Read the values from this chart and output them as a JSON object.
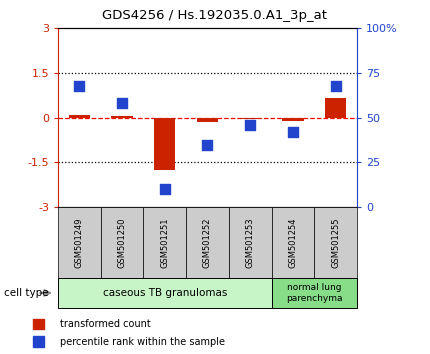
{
  "title": "GDS4256 / Hs.192035.0.A1_3p_at",
  "samples": [
    "GSM501249",
    "GSM501250",
    "GSM501251",
    "GSM501252",
    "GSM501253",
    "GSM501254",
    "GSM501255"
  ],
  "red_values": [
    0.1,
    0.05,
    -1.75,
    -0.15,
    -0.05,
    -0.1,
    0.65
  ],
  "blue_values": [
    68,
    58,
    10,
    35,
    46,
    42,
    68
  ],
  "ylim_left": [
    -3,
    3
  ],
  "ylim_right": [
    0,
    100
  ],
  "yticks_left": [
    -3,
    -1.5,
    0,
    1.5,
    3
  ],
  "ytick_labels_left": [
    "-3",
    "-1.5",
    "0",
    "1.5",
    "3"
  ],
  "yticks_right": [
    0,
    25,
    50,
    75,
    100
  ],
  "ytick_labels_right": [
    "0",
    "25",
    "50",
    "75",
    "100%"
  ],
  "hlines": [
    1.5,
    0.0,
    -1.5
  ],
  "hline_styles": [
    "dotted",
    "dashed",
    "dotted"
  ],
  "hline_colors": [
    "black",
    "red",
    "black"
  ],
  "cell_type_label": "cell type",
  "group1_label": "caseous TB granulomas",
  "group2_label": "normal lung\nparenchyma",
  "group1_indices": [
    0,
    1,
    2,
    3,
    4
  ],
  "group2_indices": [
    5,
    6
  ],
  "legend_red": "transformed count",
  "legend_blue": "percentile rank within the sample",
  "red_color": "#cc2200",
  "blue_color": "#2244cc",
  "group1_color": "#c8f5c8",
  "group2_color": "#88dd88",
  "tick_label_bg": "#cccccc",
  "bar_width": 0.5,
  "marker_size": 50
}
